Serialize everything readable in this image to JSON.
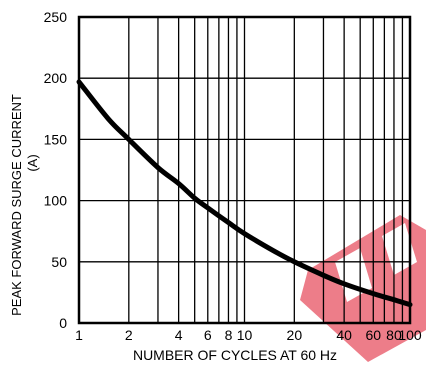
{
  "chart_data": {
    "type": "line",
    "x_scale": "log",
    "xlim": [
      1,
      100
    ],
    "ylim": [
      0,
      250
    ],
    "y_ticks": [
      0,
      50,
      100,
      150,
      200,
      250
    ],
    "x_ticks": [
      1,
      2,
      4,
      6,
      8,
      10,
      20,
      40,
      60,
      80,
      100
    ],
    "x_tick_labels": [
      "1",
      "2",
      "4",
      "6",
      "8",
      "10",
      "20",
      "40",
      "60",
      "80",
      "100"
    ],
    "y_tick_labels": [
      "0",
      "50",
      "100",
      "150",
      "200",
      "250"
    ],
    "xlabel": "NUMBER OF CYCLES AT 60 Hz",
    "ylabel_line1": "PEAK FORWARD SURGE CURRENT",
    "ylabel_line2": "(A)",
    "grid": true,
    "series": [
      {
        "x": [
          1,
          1.5,
          2,
          3,
          4,
          5,
          6,
          8,
          10,
          15,
          20,
          30,
          40,
          60,
          80,
          100
        ],
        "y": [
          197,
          167,
          150,
          127,
          114,
          102,
          94,
          82,
          73,
          59,
          50,
          39,
          32,
          24,
          19,
          15
        ]
      }
    ],
    "line_color": "#000000"
  },
  "watermark_color": "#e0142a"
}
